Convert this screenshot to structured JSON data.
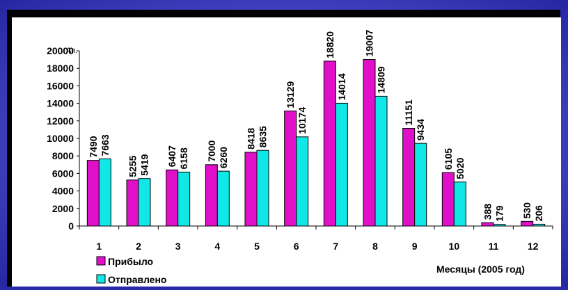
{
  "colors": {
    "background": "#4848c8",
    "series_arrived": "#e010c8",
    "series_sent": "#10e8e8"
  },
  "chart_data": {
    "type": "bar",
    "categories": [
      "1",
      "2",
      "3",
      "4",
      "5",
      "6",
      "7",
      "8",
      "9",
      "10",
      "11",
      "12"
    ],
    "series": [
      {
        "name": "Прибыло",
        "values": [
          7490,
          5255,
          6407,
          7000,
          8418,
          13129,
          18820,
          19007,
          11151,
          6105,
          388,
          530
        ],
        "color": "#e010c8"
      },
      {
        "name": "Отправлено",
        "values": [
          7663,
          5419,
          6158,
          6260,
          8635,
          10174,
          14014,
          14809,
          9434,
          5020,
          179,
          206
        ],
        "color": "#10e8e8"
      }
    ],
    "ylim": [
      0,
      20000
    ],
    "yticks": [
      "0",
      "2000",
      "4000",
      "6000",
      "8000",
      "10000",
      "12000",
      "14000",
      "16000",
      "18000",
      "20000"
    ],
    "ylabel": "",
    "y_unit": "Ап.",
    "xlabel": "Месяцы (2005 год)",
    "legend_position": "bottom-left",
    "grid": false
  }
}
